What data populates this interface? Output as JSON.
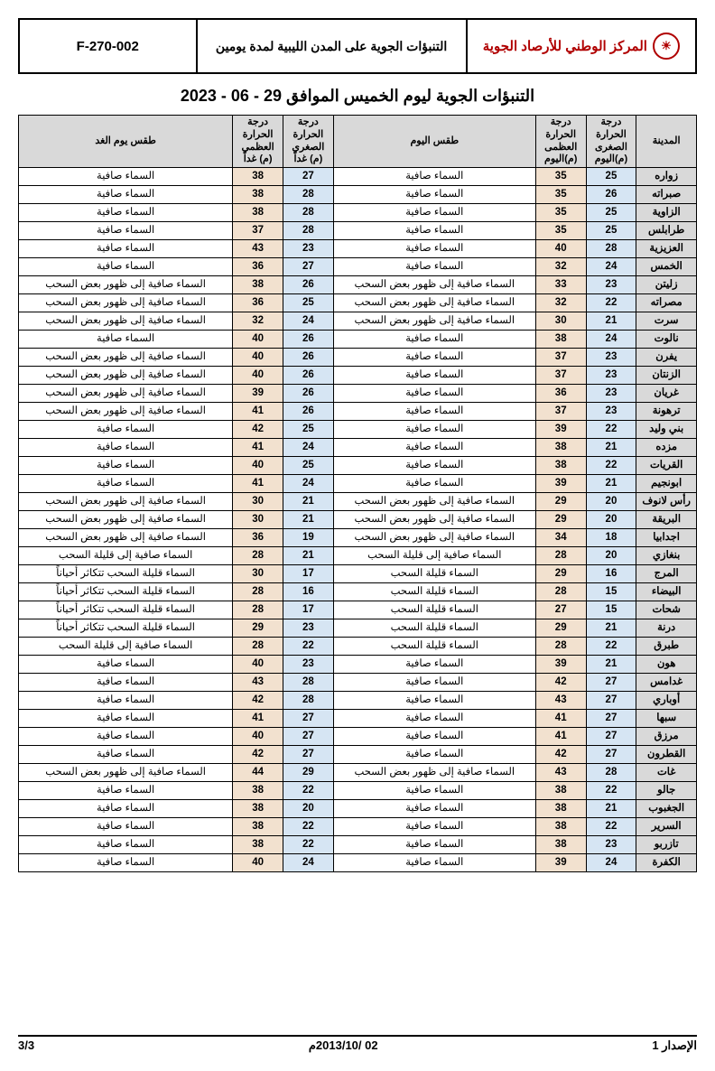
{
  "header": {
    "org": "المركز الوطني للأرصاد الجوية",
    "title": "التنبؤات الجوية على المدن الليبية لمدة يومين",
    "code": "F-270-002"
  },
  "main_title": "التنبؤات الجوية ليوم الخميس الموافق 29 - 06 - 2023",
  "columns": {
    "city": "المدينة",
    "min_today": "درجة الحرارة الصغرى (م)اليوم",
    "max_today": "درجة الحرارة العظمى (م)اليوم",
    "wx_today": "طقس اليوم",
    "min_tom": "درجة الحرارة الصغرى (م) غداً",
    "max_tom": "درجة الحرارة العظمى (م) غداً",
    "wx_tom": "طقس يوم الغد"
  },
  "colors": {
    "header_bg": "#d9d9d9",
    "min_bg": "#d6e5f3",
    "max_bg": "#f2e1cf",
    "org_color": "#b00000"
  },
  "rows": [
    {
      "city": "زواره",
      "min": 25,
      "max": 35,
      "wx": "السماء صافية",
      "min2": 27,
      "max2": 38,
      "wx2": "السماء صافية"
    },
    {
      "city": "صبراته",
      "min": 26,
      "max": 35,
      "wx": "السماء صافية",
      "min2": 28,
      "max2": 38,
      "wx2": "السماء صافية"
    },
    {
      "city": "الزاوية",
      "min": 25,
      "max": 35,
      "wx": "السماء صافية",
      "min2": 28,
      "max2": 38,
      "wx2": "السماء صافية"
    },
    {
      "city": "طرابلس",
      "min": 25,
      "max": 35,
      "wx": "السماء صافية",
      "min2": 28,
      "max2": 37,
      "wx2": "السماء صافية"
    },
    {
      "city": "العزيزية",
      "min": 28,
      "max": 40,
      "wx": "السماء صافية",
      "min2": 23,
      "max2": 43,
      "wx2": "السماء صافية"
    },
    {
      "city": "الخمس",
      "min": 24,
      "max": 32,
      "wx": "السماء صافية",
      "min2": 27,
      "max2": 36,
      "wx2": "السماء صافية"
    },
    {
      "city": "زليتن",
      "min": 23,
      "max": 33,
      "wx": "السماء صافية إلى ظهور بعض السحب",
      "min2": 26,
      "max2": 38,
      "wx2": "السماء صافية إلى ظهور بعض السحب"
    },
    {
      "city": "مصراته",
      "min": 22,
      "max": 32,
      "wx": "السماء صافية إلى ظهور بعض السحب",
      "min2": 25,
      "max2": 36,
      "wx2": "السماء صافية إلى ظهور بعض السحب"
    },
    {
      "city": "سرت",
      "min": 21,
      "max": 30,
      "wx": "السماء صافية إلى ظهور بعض السحب",
      "min2": 24,
      "max2": 32,
      "wx2": "السماء صافية إلى ظهور بعض السحب"
    },
    {
      "city": "نالوت",
      "min": 24,
      "max": 38,
      "wx": "السماء صافية",
      "min2": 26,
      "max2": 40,
      "wx2": "السماء صافية"
    },
    {
      "city": "يفرن",
      "min": 23,
      "max": 37,
      "wx": "السماء صافية",
      "min2": 26,
      "max2": 40,
      "wx2": "السماء صافية إلى ظهور بعض السحب"
    },
    {
      "city": "الزنتان",
      "min": 23,
      "max": 37,
      "wx": "السماء صافية",
      "min2": 26,
      "max2": 40,
      "wx2": "السماء صافية إلى ظهور بعض السحب"
    },
    {
      "city": "غريان",
      "min": 23,
      "max": 36,
      "wx": "السماء صافية",
      "min2": 26,
      "max2": 39,
      "wx2": "السماء صافية إلى ظهور بعض السحب"
    },
    {
      "city": "ترهونة",
      "min": 23,
      "max": 37,
      "wx": "السماء صافية",
      "min2": 26,
      "max2": 41,
      "wx2": "السماء صافية إلى ظهور بعض السحب"
    },
    {
      "city": "بني وليد",
      "min": 22,
      "max": 39,
      "wx": "السماء صافية",
      "min2": 25,
      "max2": 42,
      "wx2": "السماء صافية"
    },
    {
      "city": "مزده",
      "min": 21,
      "max": 38,
      "wx": "السماء صافية",
      "min2": 24,
      "max2": 41,
      "wx2": "السماء صافية"
    },
    {
      "city": "القريات",
      "min": 22,
      "max": 38,
      "wx": "السماء صافية",
      "min2": 25,
      "max2": 40,
      "wx2": "السماء صافية"
    },
    {
      "city": "ابونجيم",
      "min": 21,
      "max": 39,
      "wx": "السماء صافية",
      "min2": 24,
      "max2": 41,
      "wx2": "السماء صافية"
    },
    {
      "city": "رأس لانوف",
      "min": 20,
      "max": 29,
      "wx": "السماء صافية إلى ظهور بعض السحب",
      "min2": 21,
      "max2": 30,
      "wx2": "السماء صافية إلى ظهور بعض السحب"
    },
    {
      "city": "البريقة",
      "min": 20,
      "max": 29,
      "wx": "السماء صافية إلى ظهور بعض السحب",
      "min2": 21,
      "max2": 30,
      "wx2": "السماء صافية إلى ظهور بعض السحب"
    },
    {
      "city": "اجدابيا",
      "min": 18,
      "max": 34,
      "wx": "السماء صافية إلى ظهور بعض السحب",
      "min2": 19,
      "max2": 36,
      "wx2": "السماء صافية إلى ظهور بعض السحب"
    },
    {
      "city": "بنغازي",
      "min": 20,
      "max": 28,
      "wx": "السماء صافية إلى قليلة السحب",
      "min2": 21,
      "max2": 28,
      "wx2": "السماء صافية إلى قليلة السحب"
    },
    {
      "city": "المرج",
      "min": 16,
      "max": 29,
      "wx": "السماء قليلة السحب",
      "min2": 17,
      "max2": 30,
      "wx2": "السماء قليلة السحب تتكاثر أحياناً"
    },
    {
      "city": "البيضاء",
      "min": 15,
      "max": 28,
      "wx": "السماء قليلة السحب",
      "min2": 16,
      "max2": 28,
      "wx2": "السماء قليلة السحب تتكاثر أحياناً"
    },
    {
      "city": "شحات",
      "min": 15,
      "max": 27,
      "wx": "السماء قليلة السحب",
      "min2": 17,
      "max2": 28,
      "wx2": "السماء قليلة السحب تتكاثر أحياناً"
    },
    {
      "city": "درنة",
      "min": 21,
      "max": 29,
      "wx": "السماء قليلة السحب",
      "min2": 23,
      "max2": 29,
      "wx2": "السماء قليلة السحب تتكاثر أحياناً"
    },
    {
      "city": "طبرق",
      "min": 22,
      "max": 28,
      "wx": "السماء قليلة السحب",
      "min2": 22,
      "max2": 28,
      "wx2": "السماء صافية إلى قليلة السحب"
    },
    {
      "city": "هون",
      "min": 21,
      "max": 39,
      "wx": "السماء صافية",
      "min2": 23,
      "max2": 40,
      "wx2": "السماء صافية"
    },
    {
      "city": "غدامس",
      "min": 27,
      "max": 42,
      "wx": "السماء صافية",
      "min2": 28,
      "max2": 43,
      "wx2": "السماء صافية"
    },
    {
      "city": "أوباري",
      "min": 27,
      "max": 43,
      "wx": "السماء صافية",
      "min2": 28,
      "max2": 42,
      "wx2": "السماء صافية"
    },
    {
      "city": "سبها",
      "min": 27,
      "max": 41,
      "wx": "السماء صافية",
      "min2": 27,
      "max2": 41,
      "wx2": "السماء صافية"
    },
    {
      "city": "مرزق",
      "min": 27,
      "max": 41,
      "wx": "السماء صافية",
      "min2": 27,
      "max2": 40,
      "wx2": "السماء صافية"
    },
    {
      "city": "القطرون",
      "min": 27,
      "max": 42,
      "wx": "السماء صافية",
      "min2": 27,
      "max2": 42,
      "wx2": "السماء صافية"
    },
    {
      "city": "غات",
      "min": 28,
      "max": 43,
      "wx": "السماء صافية إلى ظهور بعض السحب",
      "min2": 29,
      "max2": 44,
      "wx2": "السماء صافية إلى ظهور بعض السحب"
    },
    {
      "city": "جالو",
      "min": 22,
      "max": 38,
      "wx": "السماء صافية",
      "min2": 22,
      "max2": 38,
      "wx2": "السماء صافية"
    },
    {
      "city": "الجغبوب",
      "min": 21,
      "max": 38,
      "wx": "السماء صافية",
      "min2": 20,
      "max2": 38,
      "wx2": "السماء صافية"
    },
    {
      "city": "السرير",
      "min": 22,
      "max": 38,
      "wx": "السماء صافية",
      "min2": 22,
      "max2": 38,
      "wx2": "السماء صافية"
    },
    {
      "city": "تازربو",
      "min": 23,
      "max": 38,
      "wx": "السماء صافية",
      "min2": 22,
      "max2": 38,
      "wx2": "السماء صافية"
    },
    {
      "city": "الكفرة",
      "min": 24,
      "max": 39,
      "wx": "السماء صافية",
      "min2": 24,
      "max2": 40,
      "wx2": "السماء صافية"
    }
  ],
  "footer": {
    "right": "الإصدار 1",
    "center": "02 /2013/10م",
    "left": "3/3"
  }
}
